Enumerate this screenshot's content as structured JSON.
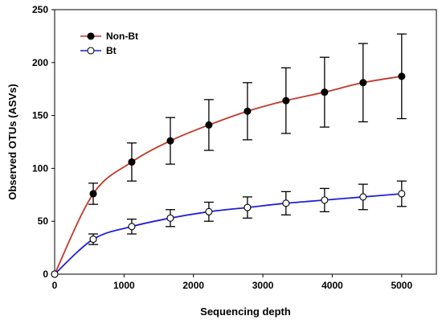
{
  "chart_data": {
    "type": "line",
    "title": "",
    "xlabel": "Sequencing depth",
    "ylabel": "Observed OTUs (ASVs)",
    "xlim": [
      0,
      5500
    ],
    "ylim": [
      0,
      250
    ],
    "xticks": [
      0,
      1000,
      2000,
      3000,
      4000,
      5000
    ],
    "yticks": [
      0,
      50,
      100,
      150,
      200,
      250
    ],
    "grid": false,
    "legend_position": "top-left",
    "series": [
      {
        "name": "Non-Bt",
        "color": "#c0392b",
        "marker": "filled-circle",
        "points": [
          {
            "x": 0,
            "y": 0,
            "err": 0
          },
          {
            "x": 556,
            "y": 76,
            "err": 10
          },
          {
            "x": 1111,
            "y": 106,
            "err": 18
          },
          {
            "x": 1667,
            "y": 126,
            "err": 22
          },
          {
            "x": 2222,
            "y": 141,
            "err": 24
          },
          {
            "x": 2778,
            "y": 154,
            "err": 27
          },
          {
            "x": 3333,
            "y": 164,
            "err": 31
          },
          {
            "x": 3889,
            "y": 172,
            "err": 33
          },
          {
            "x": 4444,
            "y": 181,
            "err": 37
          },
          {
            "x": 5000,
            "y": 187,
            "err": 40
          }
        ]
      },
      {
        "name": "Bt",
        "color": "#1f1fd6",
        "marker": "open-circle",
        "points": [
          {
            "x": 0,
            "y": 0,
            "err": 0
          },
          {
            "x": 556,
            "y": 33,
            "err": 5
          },
          {
            "x": 1111,
            "y": 45,
            "err": 7
          },
          {
            "x": 1667,
            "y": 53,
            "err": 8
          },
          {
            "x": 2222,
            "y": 59,
            "err": 9
          },
          {
            "x": 2778,
            "y": 63,
            "err": 10
          },
          {
            "x": 3333,
            "y": 67,
            "err": 11
          },
          {
            "x": 3889,
            "y": 70,
            "err": 11
          },
          {
            "x": 4444,
            "y": 73,
            "err": 12
          },
          {
            "x": 5000,
            "y": 76,
            "err": 12
          }
        ]
      }
    ]
  }
}
